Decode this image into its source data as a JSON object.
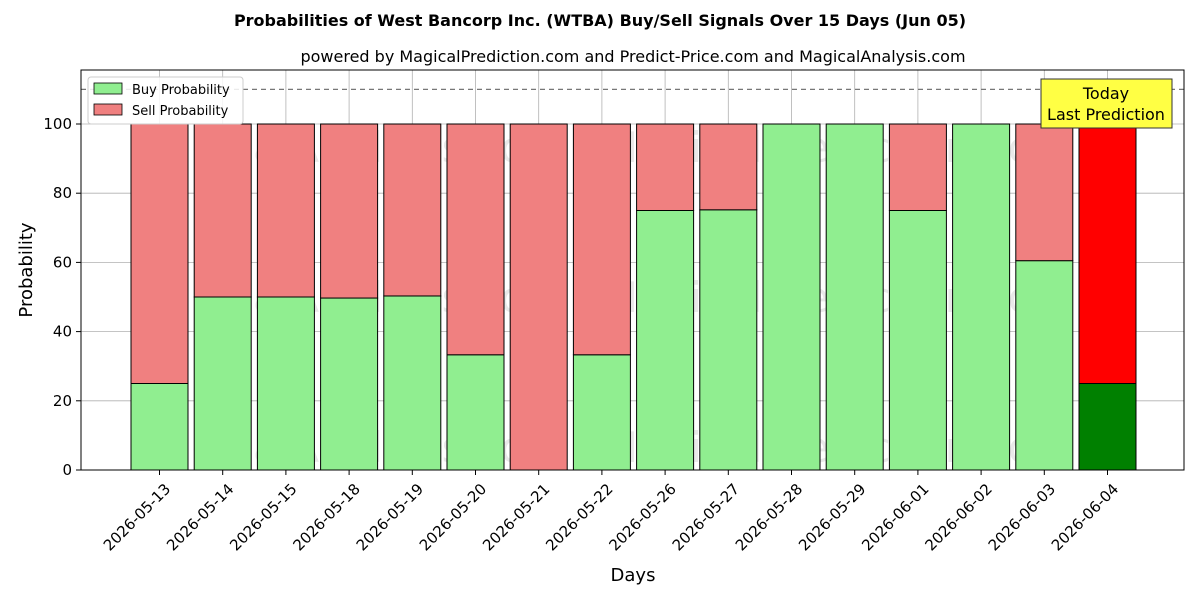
{
  "chart_data": {
    "type": "bar",
    "stacked": true,
    "title": "Probabilities of West Bancorp Inc. (WTBA) Buy/Sell Signals Over 15 Days (Jun 05)",
    "subtitle": "powered by MagicalPrediction.com and Predict-Price.com and MagicalAnalysis.com",
    "xlabel": "Days",
    "ylabel": "Probability",
    "ylim": [
      0,
      115
    ],
    "yticks": [
      0,
      20,
      40,
      60,
      80,
      100
    ],
    "grid": true,
    "legend_position": "top-left",
    "reference_line": 110,
    "categories": [
      "2026-05-13",
      "2026-05-14",
      "2026-05-15",
      "2026-05-18",
      "2026-05-19",
      "2026-05-20",
      "2026-05-21",
      "2026-05-22",
      "2026-05-26",
      "2026-05-27",
      "2026-05-28",
      "2026-05-29",
      "2026-06-01",
      "2026-06-02",
      "2026-06-03",
      "2026-06-04"
    ],
    "series": [
      {
        "name": "Buy Probability",
        "color": "#90ee90",
        "values": [
          25,
          50,
          50,
          49.7,
          50.3,
          33.3,
          0,
          33.3,
          75,
          75.2,
          100,
          100,
          75,
          100,
          60.5,
          25
        ]
      },
      {
        "name": "Sell Probability",
        "color": "#f08080",
        "values": [
          75,
          50,
          50,
          50.3,
          49.7,
          66.7,
          100,
          66.7,
          25,
          24.8,
          0,
          0,
          25,
          0,
          39.5,
          75
        ]
      }
    ],
    "highlight": {
      "category": "2026-06-04",
      "buy_color": "#008000",
      "sell_color": "#ff0000"
    },
    "annotation": {
      "lines": [
        "Today",
        "Last Prediction"
      ],
      "color": "#ffff44"
    },
    "watermarks": [
      "MagicalAnalysis.com",
      "MagicalPrediction.com"
    ]
  }
}
